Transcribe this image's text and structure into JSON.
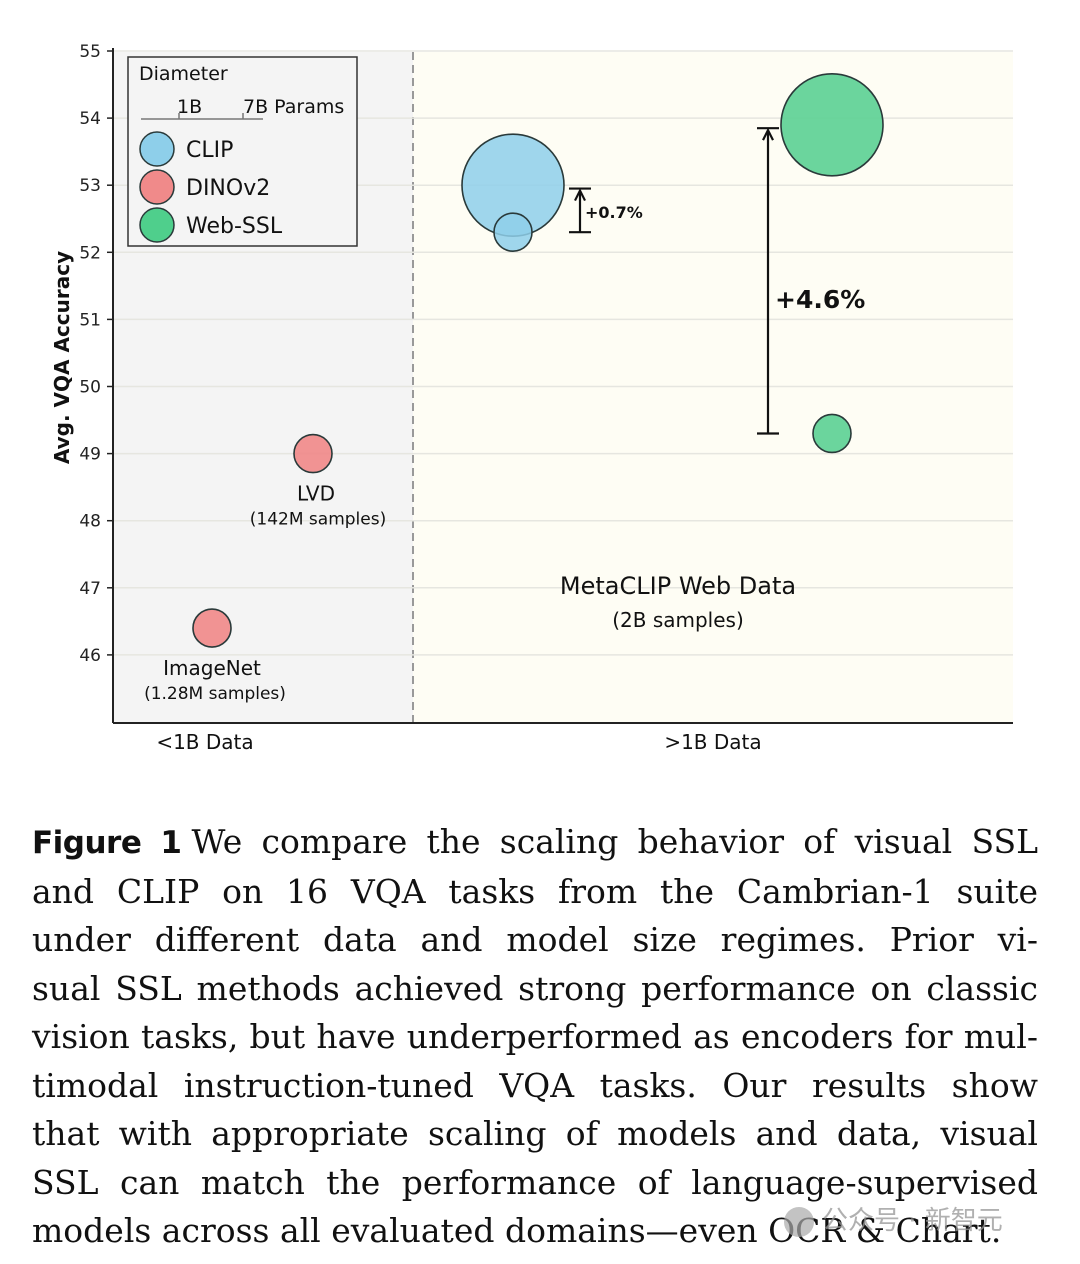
{
  "chart_data": {
    "type": "scatter",
    "subtype": "bubble",
    "title": "",
    "xlabel": "",
    "ylabel": "Avg. VQA Accuracy",
    "ylim": [
      45,
      55
    ],
    "yticks": [
      46,
      47,
      48,
      49,
      50,
      51,
      52,
      53,
      54,
      55
    ],
    "grid": true,
    "regions": [
      {
        "label": "<1B Data",
        "x_range": [
          0,
          1
        ],
        "background": "#f4f4f4"
      },
      {
        "label": ">1B Data",
        "x_range": [
          1,
          4
        ],
        "background": "#fefdf4"
      }
    ],
    "legend": {
      "placement": "top-left",
      "title": "Diameter",
      "size_scale_labels": [
        "1B",
        "7B Params"
      ],
      "entries": [
        {
          "name": "CLIP",
          "color": "#8ecfea"
        },
        {
          "name": "DINOv2",
          "color": "#f08a8a"
        },
        {
          "name": "Web-SSL",
          "color": "#4fcf8c"
        }
      ]
    },
    "series": [
      {
        "name": "CLIP",
        "color": "#8ecfea",
        "points": [
          {
            "x": 1.33,
            "y": 52.3,
            "params": "1B"
          },
          {
            "x": 1.33,
            "y": 53.0,
            "params": "7B"
          }
        ]
      },
      {
        "name": "DINOv2",
        "color": "#f08a8a",
        "points": [
          {
            "x": 0.33,
            "y": 46.4,
            "params": "1B",
            "label": "ImageNet",
            "sublabel": "(1.28M samples)"
          },
          {
            "x": 0.67,
            "y": 49.0,
            "params": "1B",
            "label": "LVD",
            "sublabel": "(142M samples)"
          }
        ]
      },
      {
        "name": "Web-SSL",
        "color": "#5ed195",
        "points": [
          {
            "x": 2.39,
            "y": 49.3,
            "params": "1B"
          },
          {
            "x": 2.39,
            "y": 53.9,
            "params": "7B"
          }
        ]
      }
    ],
    "annotations": [
      {
        "text": "+0.7%",
        "type": "arrow",
        "from_y": 52.3,
        "to_y": 52.95,
        "x": 1.56
      },
      {
        "text": "+4.6%",
        "type": "arrow",
        "from_y": 49.3,
        "to_y": 53.85,
        "x": 2.18
      },
      {
        "text": "MetaCLIP Web Data",
        "subtext": "(2B samples)",
        "x": 1.88,
        "y": 46.95
      }
    ]
  },
  "caption": {
    "label": "Figure 1",
    "lines": [
      "We compare the scaling behavior of visual SSL",
      "and CLIP on 16 VQA tasks from the Cambrian-1 suite",
      "under different data and model size regimes.  Prior vi-",
      "sual SSL methods achieved strong performance on classic",
      "vision tasks, but have underperformed as encoders for mul-",
      "timodal instruction-tuned VQA tasks. Our results show",
      "that with appropriate scaling of models and data, visual",
      "SSL can match the performance of language-supervised",
      "models across all evaluated domains—even OCR & Chart."
    ]
  },
  "watermark": {
    "text": "公众号 · 新智元"
  }
}
